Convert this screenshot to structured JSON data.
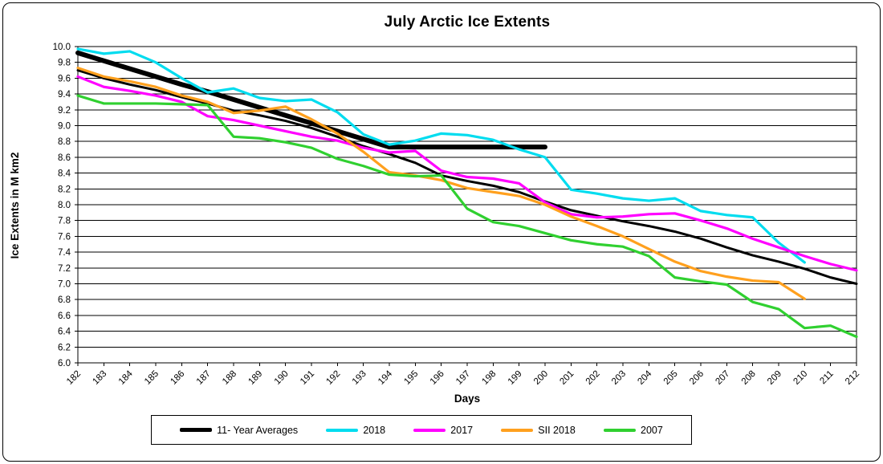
{
  "figure": {
    "title": "July Arctic Ice Extents"
  },
  "axes": {
    "y_title": "Ice Extents in M km2",
    "x_title": "Days",
    "y_ticks": [
      "10.0",
      "9.8",
      "9.6",
      "9.4",
      "9.2",
      "9.0",
      "8.8",
      "8.6",
      "8.4",
      "8.2",
      "8.0",
      "7.8",
      "7.6",
      "7.4",
      "7.2",
      "7.0",
      "6.8",
      "6.6",
      "6.4",
      "6.2",
      "6.0"
    ]
  },
  "legend": {
    "items": [
      {
        "label": "11- Year Averages",
        "color": "#000000",
        "swatch_height": 5
      },
      {
        "label": "2018",
        "color": "#00DCEF",
        "swatch_height": 4
      },
      {
        "label": "2017",
        "color": "#FF00FF",
        "swatch_height": 4
      },
      {
        "label": "SII 2018",
        "color": "#FFA01E",
        "swatch_height": 4
      },
      {
        "label": "2007",
        "color": "#30D030",
        "swatch_height": 4
      }
    ]
  },
  "chart_data": {
    "type": "line",
    "title": "July Arctic Ice Extents",
    "xlabel": "Days",
    "ylabel": "Ice Extents in M km2",
    "x": [
      182,
      183,
      184,
      185,
      186,
      187,
      188,
      189,
      190,
      191,
      192,
      193,
      194,
      195,
      196,
      197,
      198,
      199,
      200,
      201,
      202,
      203,
      204,
      205,
      206,
      207,
      208,
      209,
      210,
      211,
      212
    ],
    "ylim": [
      6.0,
      10.0
    ],
    "y_tick_step": 0.2,
    "grid": "horizontal",
    "legend_position": "bottom",
    "series": [
      {
        "name": "11- Year Averages",
        "color": "#000000",
        "stroke_width": 3,
        "values": [
          9.7,
          9.6,
          9.52,
          9.45,
          9.36,
          9.28,
          9.19,
          9.13,
          9.06,
          8.97,
          8.86,
          8.74,
          8.64,
          8.53,
          8.37,
          8.3,
          8.24,
          8.16,
          8.04,
          7.93,
          7.86,
          7.79,
          7.73,
          7.66,
          7.57,
          7.46,
          7.36,
          7.28,
          7.19,
          7.08,
          7.0
        ]
      },
      {
        "name": "thick black reference line (unlabeled trend annotation)",
        "color": "#000000",
        "stroke_width": 6,
        "values": [
          9.92,
          9.82,
          9.72,
          9.62,
          9.52,
          9.43,
          9.33,
          9.23,
          9.13,
          9.03,
          8.93,
          8.83,
          8.73,
          8.73,
          8.73,
          8.73,
          8.73,
          8.73,
          8.73,
          null,
          null,
          null,
          null,
          null,
          null,
          null,
          null,
          null,
          null,
          null,
          null
        ]
      },
      {
        "name": "2018",
        "color": "#00DCEF",
        "stroke_width": 3.2,
        "values": [
          9.97,
          9.91,
          9.94,
          9.8,
          9.6,
          9.42,
          9.47,
          9.35,
          9.31,
          9.33,
          9.17,
          8.89,
          8.76,
          8.81,
          8.9,
          8.88,
          8.82,
          8.7,
          8.6,
          8.19,
          8.14,
          8.08,
          8.05,
          8.08,
          7.92,
          7.87,
          7.84,
          7.52,
          7.27,
          null,
          null
        ]
      },
      {
        "name": "2017",
        "color": "#FF00FF",
        "stroke_width": 3.2,
        "values": [
          9.62,
          9.49,
          9.44,
          9.38,
          9.3,
          9.12,
          9.07,
          9.0,
          8.93,
          8.86,
          8.81,
          8.72,
          8.66,
          8.68,
          8.43,
          8.35,
          8.33,
          8.27,
          8.03,
          7.88,
          7.84,
          7.85,
          7.88,
          7.89,
          7.8,
          7.7,
          7.57,
          7.46,
          7.35,
          7.25,
          7.17
        ]
      },
      {
        "name": "SII 2018",
        "color": "#FFA01E",
        "stroke_width": 3.2,
        "values": [
          9.73,
          9.62,
          9.56,
          9.49,
          9.38,
          9.3,
          9.16,
          9.19,
          9.24,
          9.08,
          8.9,
          8.67,
          8.41,
          8.37,
          8.31,
          8.21,
          8.16,
          8.11,
          8.0,
          7.85,
          7.73,
          7.6,
          7.44,
          7.28,
          7.16,
          7.09,
          7.04,
          7.02,
          6.81,
          null,
          null
        ]
      },
      {
        "name": "2007",
        "color": "#30D030",
        "stroke_width": 3.2,
        "values": [
          9.38,
          9.28,
          9.28,
          9.28,
          9.27,
          9.26,
          8.86,
          8.84,
          8.79,
          8.72,
          8.58,
          8.49,
          8.38,
          8.36,
          8.37,
          7.95,
          7.78,
          7.73,
          7.64,
          7.55,
          7.5,
          7.47,
          7.35,
          7.08,
          7.03,
          6.99,
          6.77,
          6.68,
          6.44,
          6.47,
          6.33
        ]
      }
    ]
  }
}
